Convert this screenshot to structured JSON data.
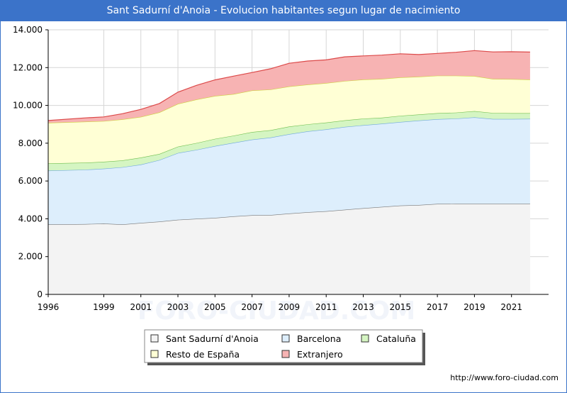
{
  "title": "Sant Sadurní d'Anoia - Evolucion habitantes segun lugar de nacimiento",
  "footer": "http://www.foro-ciudad.com",
  "watermark": "FORO-CIUDAD.COM",
  "chart_data": {
    "type": "area",
    "stacked": true,
    "x": [
      1996,
      1998,
      1999,
      2000,
      2001,
      2002,
      2003,
      2004,
      2005,
      2006,
      2007,
      2008,
      2009,
      2010,
      2011,
      2012,
      2013,
      2014,
      2015,
      2016,
      2017,
      2018,
      2019,
      2020,
      2021,
      2022
    ],
    "ylim": [
      0,
      14000
    ],
    "xlim": [
      1996,
      2023
    ],
    "yticks": [
      0,
      2000,
      4000,
      6000,
      8000,
      10000,
      12000,
      14000
    ],
    "ytick_labels": [
      "0",
      "2.000",
      "4.000",
      "6.000",
      "8.000",
      "10.000",
      "12.000",
      "14.000"
    ],
    "xticks": [
      1996,
      1999,
      2001,
      2003,
      2005,
      2007,
      2009,
      2011,
      2013,
      2015,
      2017,
      2019,
      2021
    ],
    "xtick_labels": [
      "1996",
      "1999",
      "2001",
      "2003",
      "2005",
      "2007",
      "2009",
      "2011",
      "2013",
      "2015",
      "2017",
      "2019",
      "2021"
    ],
    "grid": true,
    "legend_position": "bottom",
    "series": [
      {
        "name": "Sant Sadurní d'Anoia",
        "color": "#f3f3f3",
        "line": "#777777",
        "values": [
          3700,
          3720,
          3750,
          3700,
          3780,
          3850,
          3950,
          4000,
          4050,
          4130,
          4190,
          4200,
          4280,
          4350,
          4400,
          4480,
          4560,
          4630,
          4700,
          4730,
          4790,
          4800,
          4800,
          4800,
          4800,
          4800
        ]
      },
      {
        "name": "Barcelona",
        "color": "#ddeefc",
        "line": "#6fa8dc",
        "values": [
          2850,
          2880,
          2900,
          3030,
          3090,
          3260,
          3530,
          3650,
          3800,
          3890,
          4000,
          4100,
          4200,
          4280,
          4330,
          4380,
          4390,
          4400,
          4420,
          4470,
          4480,
          4500,
          4570,
          4480,
          4480,
          4490
        ]
      },
      {
        "name": "Cataluña",
        "color": "#d5f5c2",
        "line": "#6fbf4f",
        "values": [
          380,
          370,
          370,
          360,
          370,
          320,
          340,
          360,
          380,
          380,
          400,
          390,
          400,
          370,
          360,
          350,
          350,
          320,
          330,
          320,
          320,
          320,
          330,
          320,
          310,
          300
        ]
      },
      {
        "name": "Resto de España",
        "color": "#ffffd5",
        "line": "#cfcf40",
        "values": [
          2150,
          2170,
          2150,
          2170,
          2150,
          2200,
          2260,
          2300,
          2270,
          2200,
          2200,
          2150,
          2120,
          2100,
          2090,
          2080,
          2070,
          2050,
          2030,
          2000,
          1980,
          1950,
          1850,
          1800,
          1800,
          1780
        ]
      },
      {
        "name": "Extranjero",
        "color": "#f7b3b3",
        "line": "#dc4a4a",
        "values": [
          120,
          200,
          220,
          300,
          400,
          470,
          620,
          750,
          850,
          950,
          950,
          1100,
          1230,
          1250,
          1230,
          1280,
          1250,
          1260,
          1250,
          1170,
          1180,
          1240,
          1350,
          1430,
          1450,
          1450
        ]
      }
    ]
  }
}
